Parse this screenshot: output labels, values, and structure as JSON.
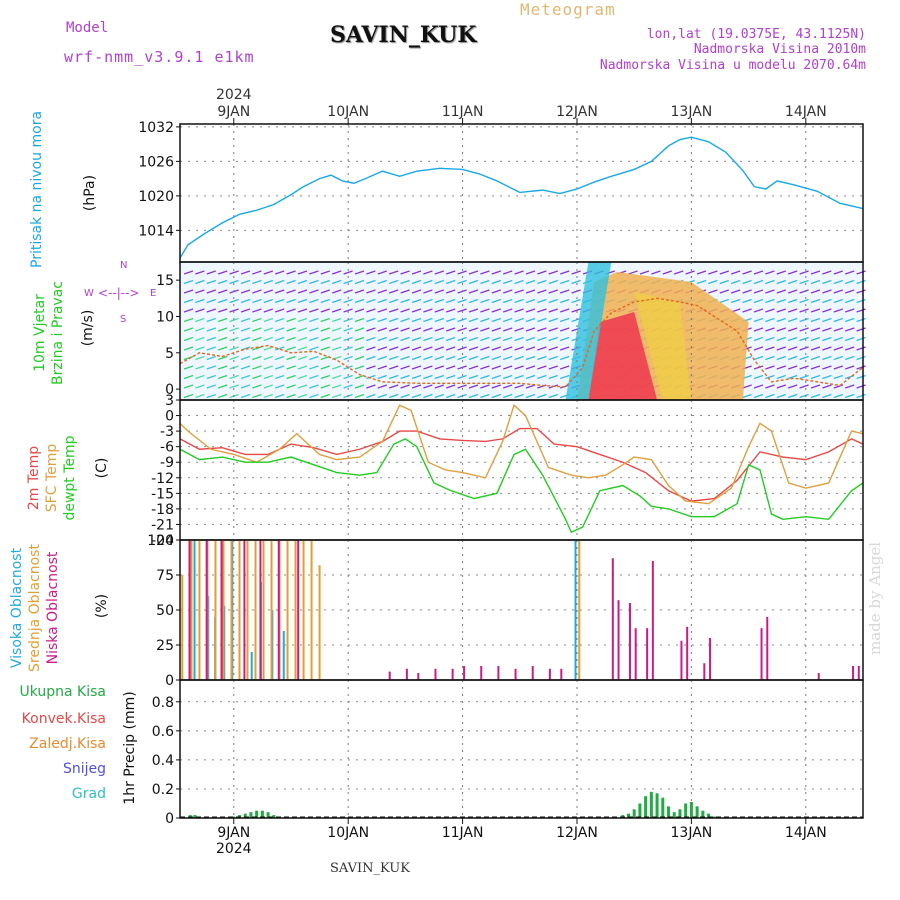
{
  "header": {
    "model_label": "Model",
    "model_value": "wrf-nmm_v3.9.1 e1km",
    "station": "SAVIN_KUK",
    "meteogram": "Meteogram",
    "lonlat": "lon,lat (19.0375E, 43.1125N)",
    "elevation": "Nadmorska Visina 2010m",
    "model_elevation": "Nadmorska Visina u modelu 2070.64m"
  },
  "footer": {
    "station": "SAVIN_KUK",
    "made_by": "made by Angel"
  },
  "time_axis": {
    "year": "2024",
    "day_labels": [
      "9JAN",
      "10JAN",
      "11JAN",
      "12JAN",
      "13JAN",
      "14JAN"
    ],
    "x_start": 8.53,
    "x_end": 14.5
  },
  "colors": {
    "pressure": "#1aa7e8",
    "temp2m": "#e84848",
    "sfc": "#e0a040",
    "dewpt": "#22cc22",
    "high_cloud": "#22aadd",
    "mid_cloud": "#e0a030",
    "low_cloud": "#cc1a88",
    "total_precip": "#22aa44",
    "grad": "#30c0c0"
  },
  "chart_data": [
    {
      "type": "line",
      "ylabel": "(hPa)",
      "side_label": [
        "Pritisak na nivou mora"
      ],
      "y_ticks": [
        1014,
        1020,
        1026,
        1032
      ],
      "ylim": [
        1008.5,
        1032.5
      ],
      "series": [
        {
          "name": "Pritisak na nivou mora",
          "color_key": "pressure",
          "x": [
            8.53,
            8.6,
            8.75,
            8.9,
            9.05,
            9.2,
            9.35,
            9.5,
            9.6,
            9.75,
            9.85,
            9.95,
            10.05,
            10.15,
            10.3,
            10.45,
            10.6,
            10.8,
            11.0,
            11.15,
            11.3,
            11.5,
            11.7,
            11.85,
            12.0,
            12.15,
            12.3,
            12.5,
            12.65,
            12.8,
            12.9,
            13.0,
            13.15,
            13.3,
            13.45,
            13.55,
            13.65,
            13.75,
            13.9,
            14.1,
            14.3,
            14.5
          ],
          "values": [
            1009.2,
            1011.5,
            1013.5,
            1015.3,
            1016.8,
            1017.5,
            1018.5,
            1020.2,
            1021.5,
            1023.0,
            1023.6,
            1022.6,
            1022.2,
            1023.0,
            1024.3,
            1023.4,
            1024.3,
            1024.8,
            1024.6,
            1023.8,
            1022.6,
            1020.6,
            1021.0,
            1020.4,
            1021.2,
            1022.4,
            1023.4,
            1024.6,
            1026.0,
            1028.7,
            1029.8,
            1030.2,
            1029.4,
            1027.6,
            1024.4,
            1021.6,
            1021.2,
            1022.6,
            1021.9,
            1020.8,
            1018.7,
            1017.8
          ]
        }
      ]
    },
    {
      "type": "scatter",
      "ylabel": "(m/s)",
      "side_label": [
        "10m Vjetar",
        "Brzina i Pravac"
      ],
      "compass": {
        "n": "N",
        "s": "S",
        "w": "W",
        "e": "E"
      },
      "y_ticks": [
        0,
        5,
        10,
        15
      ],
      "ylim": [
        -1.5,
        17.5
      ],
      "series": [
        {
          "name": "10m Vjetar Brzina",
          "x": [
            8.53,
            8.7,
            8.9,
            9.1,
            9.3,
            9.5,
            9.7,
            9.9,
            10.1,
            10.3,
            10.6,
            10.9,
            11.2,
            11.5,
            11.7,
            11.9,
            12.05,
            12.15,
            12.3,
            12.5,
            12.7,
            12.9,
            13.05,
            13.2,
            13.4,
            13.55,
            13.7,
            13.9,
            14.1,
            14.3,
            14.5
          ],
          "values": [
            3.5,
            5.0,
            4.5,
            5.5,
            6.0,
            5.0,
            5.2,
            4.0,
            2.0,
            1.0,
            0.8,
            0.8,
            0.8,
            0.8,
            0.5,
            0.3,
            3.0,
            8.0,
            10.5,
            12.0,
            12.5,
            12.0,
            11.5,
            10.0,
            8.0,
            4.0,
            1.0,
            1.5,
            1.0,
            0.5,
            3.0
          ]
        }
      ]
    },
    {
      "type": "line",
      "ylabel": "(C)",
      "side_label": [
        "2m Temp",
        "SFC Temp",
        "dewpt Temp"
      ],
      "y_ticks": [
        3,
        0,
        -3,
        -6,
        -9,
        -12,
        -15,
        -18,
        -21,
        -24
      ],
      "ylim": [
        -24,
        3
      ],
      "series": [
        {
          "name": "2m Temp",
          "color_key": "temp2m",
          "x": [
            8.53,
            8.7,
            8.9,
            9.1,
            9.3,
            9.5,
            9.7,
            9.9,
            10.1,
            10.3,
            10.45,
            10.6,
            10.8,
            11.0,
            11.2,
            11.35,
            11.5,
            11.65,
            11.8,
            12.0,
            12.2,
            12.4,
            12.6,
            12.8,
            13.0,
            13.2,
            13.4,
            13.6,
            13.8,
            14.0,
            14.2,
            14.4,
            14.5
          ],
          "values": [
            -4.5,
            -6.5,
            -6.2,
            -7.5,
            -7.5,
            -5.5,
            -6.2,
            -7.5,
            -6.5,
            -5.0,
            -3.0,
            -3.0,
            -4.5,
            -4.8,
            -5.0,
            -4.5,
            -2.5,
            -2.5,
            -5.5,
            -6.0,
            -7.5,
            -9.0,
            -11.0,
            -14.5,
            -16.5,
            -16.0,
            -12.5,
            -7.0,
            -8.0,
            -8.5,
            -7.0,
            -4.5,
            -5.5
          ]
        },
        {
          "name": "SFC Temp",
          "color_key": "sfc",
          "x": [
            8.53,
            8.6,
            8.8,
            9.0,
            9.2,
            9.4,
            9.55,
            9.75,
            9.9,
            10.1,
            10.3,
            10.45,
            10.55,
            10.7,
            10.85,
            11.0,
            11.2,
            11.35,
            11.45,
            11.55,
            11.75,
            11.95,
            12.1,
            12.25,
            12.4,
            12.5,
            12.65,
            12.8,
            12.95,
            13.15,
            13.35,
            13.5,
            13.6,
            13.7,
            13.85,
            14.0,
            14.2,
            14.4,
            14.5
          ],
          "values": [
            -1.5,
            -3.0,
            -6.5,
            -7.5,
            -9.0,
            -6.5,
            -3.5,
            -7.5,
            -8.5,
            -8.0,
            -5.0,
            2.0,
            1.0,
            -9.0,
            -10.5,
            -11.0,
            -12.0,
            -5.0,
            2.0,
            0.0,
            -10.0,
            -11.5,
            -12.0,
            -11.5,
            -9.5,
            -8.0,
            -8.5,
            -13.5,
            -16.5,
            -17.0,
            -14.0,
            -6.0,
            -1.5,
            -3.0,
            -13.0,
            -14.0,
            -13.0,
            -3.0,
            -3.5
          ]
        },
        {
          "name": "dewpt Temp",
          "color_key": "dewpt",
          "x": [
            8.53,
            8.7,
            8.9,
            9.1,
            9.3,
            9.5,
            9.7,
            9.9,
            10.1,
            10.25,
            10.4,
            10.5,
            10.6,
            10.75,
            10.9,
            11.1,
            11.3,
            11.45,
            11.55,
            11.7,
            11.9,
            11.95,
            12.05,
            12.2,
            12.4,
            12.55,
            12.65,
            12.8,
            13.0,
            13.2,
            13.4,
            13.5,
            13.6,
            13.7,
            13.8,
            14.0,
            14.2,
            14.4,
            14.5
          ],
          "values": [
            -6.5,
            -8.5,
            -8.0,
            -9.0,
            -9.0,
            -8.0,
            -9.5,
            -11.0,
            -11.5,
            -11.0,
            -5.5,
            -4.5,
            -6.0,
            -13.0,
            -14.5,
            -16.0,
            -15.0,
            -7.5,
            -6.5,
            -11.5,
            -20.0,
            -22.5,
            -21.5,
            -14.5,
            -13.5,
            -15.5,
            -17.5,
            -18.0,
            -19.5,
            -19.5,
            -17.0,
            -9.5,
            -10.5,
            -19.0,
            -20.0,
            -19.5,
            -20.0,
            -14.5,
            -13.0
          ]
        }
      ]
    },
    {
      "type": "bar",
      "ylabel": "(%)",
      "side_label": [
        "Visoka Oblacnost",
        "Srednja Oblacnost",
        "Niska Oblacnost"
      ],
      "y_ticks": [
        0,
        25,
        50,
        75,
        100
      ],
      "ylim": [
        0,
        100
      ],
      "series": [
        {
          "name": "Visoka Oblacnost",
          "color_key": "high_cloud",
          "x": [
            8.67,
            8.79,
            8.85,
            8.93,
            9.0,
            9.17,
            9.25,
            9.35,
            9.45,
            12.0
          ],
          "values": [
            100,
            60,
            45,
            53,
            100,
            20,
            70,
            50,
            35,
            100
          ]
        },
        {
          "name": "Srednja Oblacnost",
          "color_key": "mid_cloud",
          "x": [
            8.55,
            8.63,
            8.7,
            8.77,
            8.84,
            8.91,
            8.98,
            9.05,
            9.12,
            9.19,
            9.26,
            9.33,
            9.4,
            9.47,
            9.54,
            9.61,
            9.68,
            9.75,
            12.02
          ],
          "values": [
            75,
            100,
            100,
            100,
            100,
            100,
            100,
            100,
            100,
            100,
            100,
            100,
            100,
            100,
            100,
            100,
            100,
            82,
            100
          ]
        },
        {
          "name": "Niska Oblacnost",
          "color_key": "low_cloud",
          "x": [
            8.6,
            8.75,
            8.88,
            9.08,
            9.22,
            9.38,
            9.55,
            10.35,
            10.5,
            10.6,
            10.75,
            10.9,
            11.0,
            11.15,
            11.3,
            11.45,
            11.6,
            11.75,
            11.85,
            12.3,
            12.35,
            12.45,
            12.5,
            12.6,
            12.65,
            12.9,
            12.95,
            13.1,
            13.15,
            13.6,
            13.65,
            14.1,
            14.4,
            14.45
          ],
          "values": [
            100,
            100,
            100,
            100,
            100,
            100,
            100,
            6,
            8,
            5,
            8,
            8,
            10,
            10,
            10,
            8,
            10,
            8,
            8,
            87,
            57,
            55,
            37,
            37,
            85,
            28,
            38,
            12,
            30,
            37,
            45,
            5,
            10,
            10
          ]
        }
      ]
    },
    {
      "type": "bar",
      "ylabel": "1hr Precip (mm)",
      "side_label": [
        "Ukupna Kisa",
        "Konvek.Kisa",
        "Zaledj.Kisa",
        "Snijeg",
        "Grad"
      ],
      "y_ticks": [
        0,
        0.2,
        0.4,
        0.6,
        0.8
      ],
      "ylim": [
        0,
        0.95
      ],
      "series": [
        {
          "name": "Ukupna Kisa",
          "color_key": "total_precip",
          "x": [
            8.62,
            8.66,
            9.0,
            9.05,
            9.1,
            9.15,
            9.2,
            9.25,
            9.3,
            9.35,
            9.4,
            12.4,
            12.45,
            12.5,
            12.55,
            12.6,
            12.65,
            12.7,
            12.75,
            12.8,
            12.85,
            12.9,
            12.95,
            13.0,
            13.05,
            13.1,
            13.15,
            13.2
          ],
          "values": [
            0.02,
            0.02,
            0.01,
            0.02,
            0.03,
            0.04,
            0.05,
            0.05,
            0.04,
            0.02,
            0.01,
            0.02,
            0.03,
            0.06,
            0.1,
            0.15,
            0.18,
            0.17,
            0.14,
            0.08,
            0.04,
            0.06,
            0.1,
            0.11,
            0.08,
            0.05,
            0.03,
            0.01
          ]
        }
      ]
    }
  ]
}
